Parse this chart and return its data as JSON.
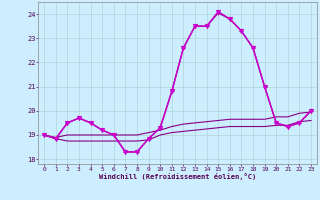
{
  "xlabel": "Windchill (Refroidissement éolien,°C)",
  "background_color": "#cceeff",
  "grid_color": "#aacccc",
  "xlim": [
    -0.5,
    23.5
  ],
  "ylim": [
    17.8,
    24.5
  ],
  "yticks": [
    18,
    19,
    20,
    21,
    22,
    23,
    24
  ],
  "xticks": [
    0,
    1,
    2,
    3,
    4,
    5,
    6,
    7,
    8,
    9,
    10,
    11,
    12,
    13,
    14,
    15,
    16,
    17,
    18,
    19,
    20,
    21,
    22,
    23
  ],
  "series": [
    {
      "x": [
        0,
        1,
        2,
        3,
        4,
        5,
        6,
        7,
        8,
        9,
        10,
        11,
        12,
        13,
        14,
        15,
        16,
        17,
        18,
        19,
        20,
        21,
        22,
        23
      ],
      "y": [
        19.0,
        18.85,
        18.75,
        18.75,
        18.75,
        18.75,
        18.75,
        18.75,
        18.75,
        18.8,
        19.0,
        19.1,
        19.15,
        19.2,
        19.25,
        19.3,
        19.35,
        19.35,
        19.35,
        19.35,
        19.4,
        19.4,
        19.55,
        19.6
      ],
      "color": "#880088",
      "linewidth": 0.8,
      "marker": null,
      "zorder": 2
    },
    {
      "x": [
        0,
        1,
        2,
        3,
        4,
        5,
        6,
        7,
        8,
        9,
        10,
        11,
        12,
        13,
        14,
        15,
        16,
        17,
        18,
        19,
        20,
        21,
        22,
        23
      ],
      "y": [
        19.0,
        18.9,
        19.0,
        19.0,
        19.0,
        19.0,
        19.0,
        19.0,
        19.0,
        19.1,
        19.2,
        19.35,
        19.45,
        19.5,
        19.55,
        19.6,
        19.65,
        19.65,
        19.65,
        19.65,
        19.75,
        19.75,
        19.9,
        19.95
      ],
      "color": "#880088",
      "linewidth": 0.8,
      "marker": null,
      "zorder": 2
    },
    {
      "x": [
        0,
        1,
        2,
        3,
        4,
        5,
        6,
        7,
        8,
        9,
        10,
        11,
        12,
        13,
        14,
        15,
        16,
        17,
        18,
        19,
        20,
        21,
        22,
        23
      ],
      "y": [
        19.0,
        18.85,
        19.5,
        19.7,
        19.5,
        19.2,
        19.0,
        18.3,
        18.3,
        18.85,
        19.3,
        20.8,
        22.6,
        23.5,
        23.5,
        24.05,
        23.8,
        23.3,
        22.6,
        21.0,
        19.5,
        19.35,
        19.5,
        20.0
      ],
      "color": "#990099",
      "linewidth": 1.0,
      "marker": "+",
      "markersize": 3,
      "zorder": 3
    },
    {
      "x": [
        0,
        1,
        2,
        3,
        4,
        5,
        6,
        7,
        8,
        9,
        10,
        11,
        12,
        13,
        14,
        15,
        16,
        17,
        18,
        19,
        20,
        21,
        22,
        23
      ],
      "y": [
        19.0,
        18.85,
        19.5,
        19.7,
        19.5,
        19.2,
        19.0,
        18.3,
        18.3,
        18.85,
        19.3,
        20.8,
        22.6,
        23.5,
        23.5,
        24.1,
        23.8,
        23.3,
        22.6,
        21.0,
        19.5,
        19.35,
        19.5,
        20.0
      ],
      "color": "#cc00cc",
      "linewidth": 1.0,
      "marker": "v",
      "markersize": 3,
      "zorder": 3
    }
  ]
}
